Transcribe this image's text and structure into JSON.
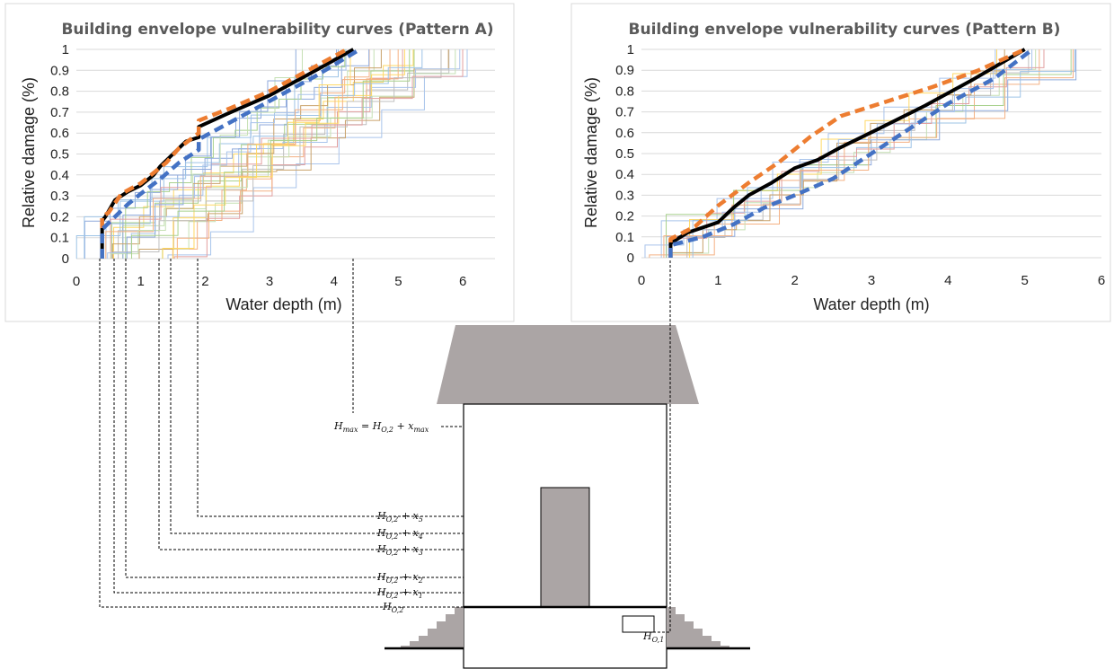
{
  "chart_data": [
    {
      "type": "line",
      "title": "Building envelope vulnerability curves (Pattern A)",
      "xlabel": "Water depth (m)",
      "ylabel": "Relative damage (%)",
      "xlim": [
        0,
        6.5
      ],
      "ylim": [
        0,
        1
      ],
      "xticks": [
        "0",
        "1",
        "2",
        "3",
        "4",
        "5",
        "6"
      ],
      "yticks": [
        "0",
        "0.1",
        "0.2",
        "0.3",
        "0.4",
        "0.5",
        "0.6",
        "0.7",
        "0.8",
        "0.9",
        "1"
      ],
      "grid": true,
      "series": [
        {
          "style": "black-solid",
          "color": "#000000",
          "x": [
            0.4,
            0.4,
            0.45,
            0.6,
            0.8,
            1.0,
            1.2,
            1.3,
            1.5,
            1.7,
            1.9,
            1.9,
            2.4,
            3.0,
            3.6,
            4.3
          ],
          "y": [
            0.0,
            0.18,
            0.2,
            0.28,
            0.32,
            0.35,
            0.4,
            0.44,
            0.5,
            0.56,
            0.58,
            0.63,
            0.7,
            0.78,
            0.88,
            1.0
          ]
        },
        {
          "style": "orange-dashed",
          "color": "#ed7d31",
          "x": [
            0.4,
            0.4,
            0.5,
            0.7,
            1.0,
            1.2,
            1.4,
            1.6,
            1.9,
            1.9,
            2.4,
            3.0,
            3.6,
            4.2
          ],
          "y": [
            0.0,
            0.2,
            0.22,
            0.31,
            0.36,
            0.41,
            0.46,
            0.53,
            0.6,
            0.66,
            0.72,
            0.8,
            0.9,
            1.0
          ]
        },
        {
          "style": "blue-dashed",
          "color": "#4472c4",
          "x": [
            0.4,
            0.4,
            0.6,
            0.8,
            1.0,
            1.3,
            1.6,
            1.9,
            1.9,
            2.5,
            3.1,
            3.7,
            4.4
          ],
          "y": [
            0.0,
            0.14,
            0.2,
            0.26,
            0.31,
            0.38,
            0.46,
            0.52,
            0.57,
            0.67,
            0.77,
            0.87,
            1.0
          ]
        }
      ]
    },
    {
      "type": "line",
      "title": "Building envelope vulnerability curves (Pattern B)",
      "xlabel": "Water depth (m)",
      "ylabel": "Relative damage (%)",
      "xlim": [
        0,
        6
      ],
      "ylim": [
        0,
        1
      ],
      "xticks": [
        "0",
        "1",
        "2",
        "3",
        "4",
        "5",
        "6"
      ],
      "yticks": [
        "0",
        "0.1",
        "0.2",
        "0.3",
        "0.4",
        "0.5",
        "0.6",
        "0.7",
        "0.8",
        "0.9",
        "1"
      ],
      "grid": true,
      "series": [
        {
          "style": "black-solid",
          "color": "#000000",
          "x": [
            0.38,
            0.38,
            0.6,
            1.0,
            1.2,
            1.4,
            1.7,
            2.0,
            2.3,
            2.6,
            3.1,
            3.7,
            4.3,
            5.0
          ],
          "y": [
            0.0,
            0.07,
            0.12,
            0.17,
            0.24,
            0.3,
            0.36,
            0.43,
            0.47,
            0.53,
            0.62,
            0.73,
            0.85,
            1.0
          ]
        },
        {
          "style": "orange-dashed",
          "color": "#ed7d31",
          "x": [
            0.38,
            0.38,
            0.7,
            1.0,
            1.4,
            1.8,
            2.2,
            2.6,
            3.2,
            3.8,
            4.4,
            5.0
          ],
          "y": [
            0.0,
            0.09,
            0.15,
            0.25,
            0.36,
            0.46,
            0.58,
            0.68,
            0.75,
            0.82,
            0.9,
            1.0
          ]
        },
        {
          "style": "blue-dashed",
          "color": "#4472c4",
          "x": [
            0.38,
            0.38,
            0.8,
            1.2,
            1.6,
            2.0,
            2.5,
            3.0,
            3.5,
            4.0,
            4.6,
            5.1
          ],
          "y": [
            0.0,
            0.06,
            0.1,
            0.16,
            0.24,
            0.3,
            0.38,
            0.5,
            0.62,
            0.74,
            0.86,
            1.0
          ]
        }
      ]
    }
  ],
  "labels": {
    "h_max": {
      "base": "H",
      "sub": "max",
      "eq": " = ",
      "base2": "H",
      "sub2": "O,2",
      "plus": " + ",
      "var": "x",
      "varsub": "max"
    },
    "h_x5": {
      "base": "H",
      "sub": "O,2",
      "plus": " + ",
      "var": "x",
      "varsub": "5"
    },
    "h_x4": {
      "base": "H",
      "sub": "O,2",
      "plus": " + ",
      "var": "x",
      "varsub": "4"
    },
    "h_x3": {
      "base": "H",
      "sub": "O,2",
      "plus": " + ",
      "var": "x",
      "varsub": "3"
    },
    "h_x2": {
      "base": "H",
      "sub": "O,2",
      "plus": " + ",
      "var": "x",
      "varsub": "2"
    },
    "h_x1": {
      "base": "H",
      "sub": "O,2",
      "plus": " + ",
      "var": "x",
      "varsub": "1"
    },
    "h_o2": {
      "base": "H",
      "sub": "O,2"
    },
    "h_o1": {
      "base": "H",
      "sub": "O,1"
    }
  },
  "colors": {
    "roof": "#aba5a5",
    "door": "#aba5a5",
    "soil": "#aba5a5",
    "grid": "#d9d9d9",
    "frame": "#d0d0d0"
  }
}
